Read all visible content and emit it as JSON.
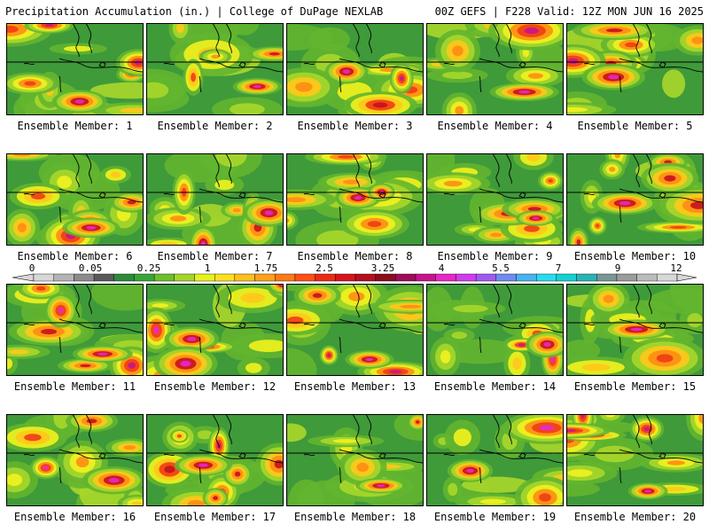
{
  "header": {
    "left": "Precipitation Accumulation (in.) | College of DuPage NEXLAB",
    "right": "00Z GEFS | F228 Valid: 12Z MON JUN 16 2025"
  },
  "panels": [
    {
      "label": "Ensemble Member: 1"
    },
    {
      "label": "Ensemble Member: 2"
    },
    {
      "label": "Ensemble Member: 3"
    },
    {
      "label": "Ensemble Member: 4"
    },
    {
      "label": "Ensemble Member: 5"
    },
    {
      "label": "Ensemble Member: 6"
    },
    {
      "label": "Ensemble Member: 7"
    },
    {
      "label": "Ensemble Member: 8"
    },
    {
      "label": "Ensemble Member: 9"
    },
    {
      "label": "Ensemble Member: 10"
    },
    {
      "label": "Ensemble Member: 11"
    },
    {
      "label": "Ensemble Member: 12"
    },
    {
      "label": "Ensemble Member: 13"
    },
    {
      "label": "Ensemble Member: 14"
    },
    {
      "label": "Ensemble Member: 15"
    },
    {
      "label": "Ensemble Member: 16"
    },
    {
      "label": "Ensemble Member: 17"
    },
    {
      "label": "Ensemble Member: 18"
    },
    {
      "label": "Ensemble Member: 19"
    },
    {
      "label": "Ensemble Member: 20"
    }
  ],
  "colorbar": {
    "tick_labels": [
      "0",
      "0.05",
      "0.25",
      "1",
      "1.75",
      "2.5",
      "3.25",
      "4",
      "5.5",
      "7",
      "9",
      "12"
    ],
    "colors": [
      "#d8d8d8",
      "#b4b4b4",
      "#8c8c8c",
      "#5a5a5a",
      "#2e8b3a",
      "#3aa53a",
      "#6cc02e",
      "#a4d62a",
      "#e6f21e",
      "#ffe01e",
      "#ffc01a",
      "#ffa01a",
      "#ff7a14",
      "#ff5014",
      "#ee2a14",
      "#d6141e",
      "#b4101e",
      "#8c0c1e",
      "#a00c5a",
      "#c8148c",
      "#e828c8",
      "#d23cf0",
      "#a05af0",
      "#6e8cf0",
      "#46b4f0",
      "#28dcf0",
      "#14d2d2",
      "#28b4b4",
      "#7a9696",
      "#9c9c9c",
      "#bcbcbc",
      "#d8d8d8"
    ]
  }
}
